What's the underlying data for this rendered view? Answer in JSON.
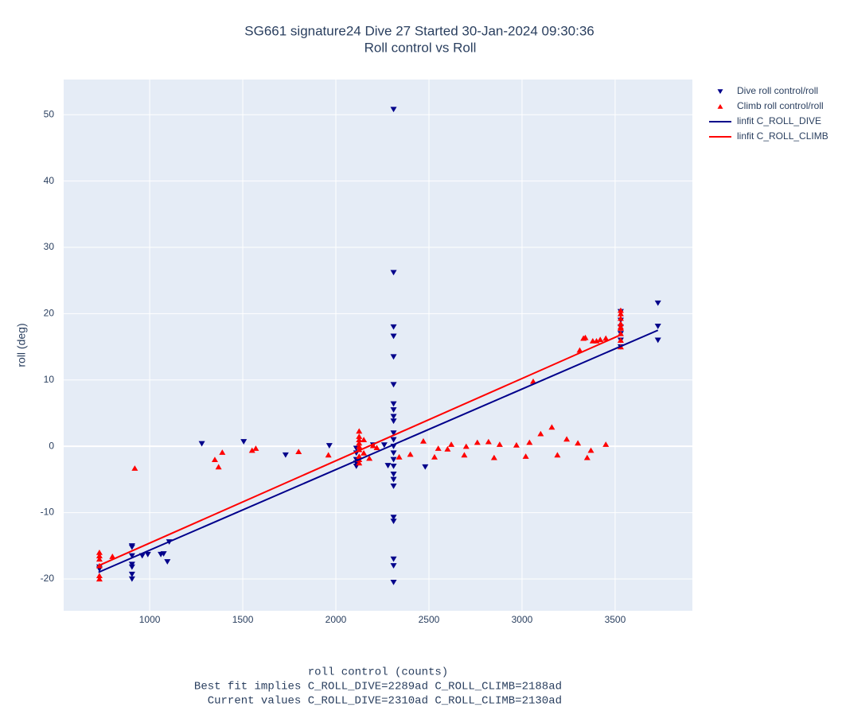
{
  "chart_data": {
    "type": "scatter",
    "title": "SG661 signature24 Dive 27 Started 30-Jan-2024 09:30:36",
    "subtitle": "Roll control vs Roll",
    "xlabel": "roll control (counts)",
    "ylabel": "roll (deg)",
    "annotations": [
      "Best fit implies C_ROLL_DIVE=2289ad C_ROLL_CLIMB=2188ad",
      "Current values C_ROLL_DIVE=2310ad C_ROLL_CLIMB=2130ad"
    ],
    "xlim": [
      538,
      3915
    ],
    "ylim": [
      -24.8,
      55.3
    ],
    "xticks": [
      1000,
      1500,
      2000,
      2500,
      3000,
      3500
    ],
    "yticks": [
      -20,
      -10,
      0,
      10,
      20,
      30,
      40,
      50
    ],
    "grid": true,
    "legend": "right",
    "series": [
      {
        "name": "Dive roll control/roll",
        "type": "scatter",
        "marker": "triangle-down",
        "color": "#00008b",
        "x": [
          2310,
          2310,
          2310,
          2310,
          2310,
          2310,
          2310,
          2310,
          2310,
          2310,
          2310,
          2310,
          2310,
          2310,
          2310,
          2310,
          2310,
          2310,
          2310,
          2310,
          2310,
          2310,
          2310,
          2310,
          905,
          905,
          905,
          905,
          905,
          905,
          905,
          730,
          730,
          960,
          990,
          1060,
          1075,
          1095,
          1105,
          1280,
          1505,
          1730,
          1965,
          2110,
          2110,
          2110,
          2110,
          2110,
          2200,
          2260,
          2280,
          2480,
          3530,
          3530,
          3530,
          3530,
          3530,
          3530,
          3730,
          3730,
          3730
        ],
        "values": [
          50.8,
          26.2,
          18,
          16.6,
          13.5,
          9.3,
          6.4,
          5.5,
          4.5,
          3.8,
          2,
          1,
          0,
          -1,
          -2,
          -3,
          -4.2,
          -5,
          -6,
          -10.7,
          -11.3,
          -17,
          -18,
          -20.5,
          -15,
          -15.2,
          -17.8,
          -18.2,
          -19.3,
          -20,
          -16.5,
          -18.5,
          -18.2,
          -16.5,
          -16.3,
          -16.3,
          -16.2,
          -17.4,
          -14.4,
          0.4,
          0.7,
          -1.3,
          0.1,
          -3,
          -2.5,
          -2,
          -1,
          -0.3,
          0.2,
          0.2,
          -2.9,
          -3.1,
          15,
          16,
          17,
          18,
          19,
          20.3,
          21.6,
          18.1,
          16
        ]
      },
      {
        "name": "Climb roll control/roll",
        "type": "scatter",
        "marker": "triangle-up",
        "color": "#ff0000",
        "x": [
          730,
          730,
          730,
          730,
          730,
          730,
          800,
          920,
          1350,
          1370,
          1390,
          1550,
          1570,
          1800,
          1960,
          2125,
          2125,
          2125,
          2125,
          2125,
          2125,
          2125,
          2125,
          2125,
          2150,
          2150,
          2180,
          2200,
          2220,
          2340,
          2400,
          2470,
          2530,
          2550,
          2600,
          2620,
          2690,
          2700,
          2760,
          2820,
          2850,
          2880,
          2970,
          3020,
          3040,
          3060,
          3100,
          3160,
          3190,
          3240,
          3300,
          3310,
          3330,
          3340,
          3350,
          3370,
          3380,
          3400,
          3420,
          3450,
          3450,
          3530,
          3530,
          3530,
          3530,
          3530,
          3530,
          3530,
          3530,
          3530
        ],
        "values": [
          -16,
          -16.5,
          -17,
          -18,
          -19.5,
          -20,
          -16.6,
          -3.3,
          -2,
          -3.1,
          -0.9,
          -0.6,
          -0.3,
          -0.8,
          -1.3,
          2.3,
          1.5,
          0.5,
          -0.5,
          -1.5,
          -2.5,
          -2,
          1,
          0,
          1,
          -1,
          -1.8,
          0.1,
          -0.2,
          -1.6,
          -1.2,
          0.8,
          -1.6,
          -0.3,
          -0.4,
          0.3,
          -1.3,
          0,
          0.6,
          0.7,
          -1.7,
          0.3,
          0.2,
          -1.5,
          0.6,
          9.8,
          1.9,
          2.9,
          -1.3,
          1.1,
          0.5,
          14.5,
          16.3,
          16.4,
          -1.7,
          -0.6,
          15.9,
          15.9,
          16.1,
          0.3,
          16.3,
          15,
          16,
          17,
          17.8,
          18,
          18.5,
          19.3,
          20,
          20.5
        ]
      },
      {
        "name": "linfit C_ROLL_DIVE",
        "type": "line",
        "color": "#00008b",
        "x": [
          725,
          3730
        ],
        "values": [
          -19,
          17.5
        ]
      },
      {
        "name": "linfit C_ROLL_CLIMB",
        "type": "line",
        "color": "#ff0000",
        "x": [
          725,
          3530
        ],
        "values": [
          -18,
          16.8
        ]
      }
    ]
  }
}
